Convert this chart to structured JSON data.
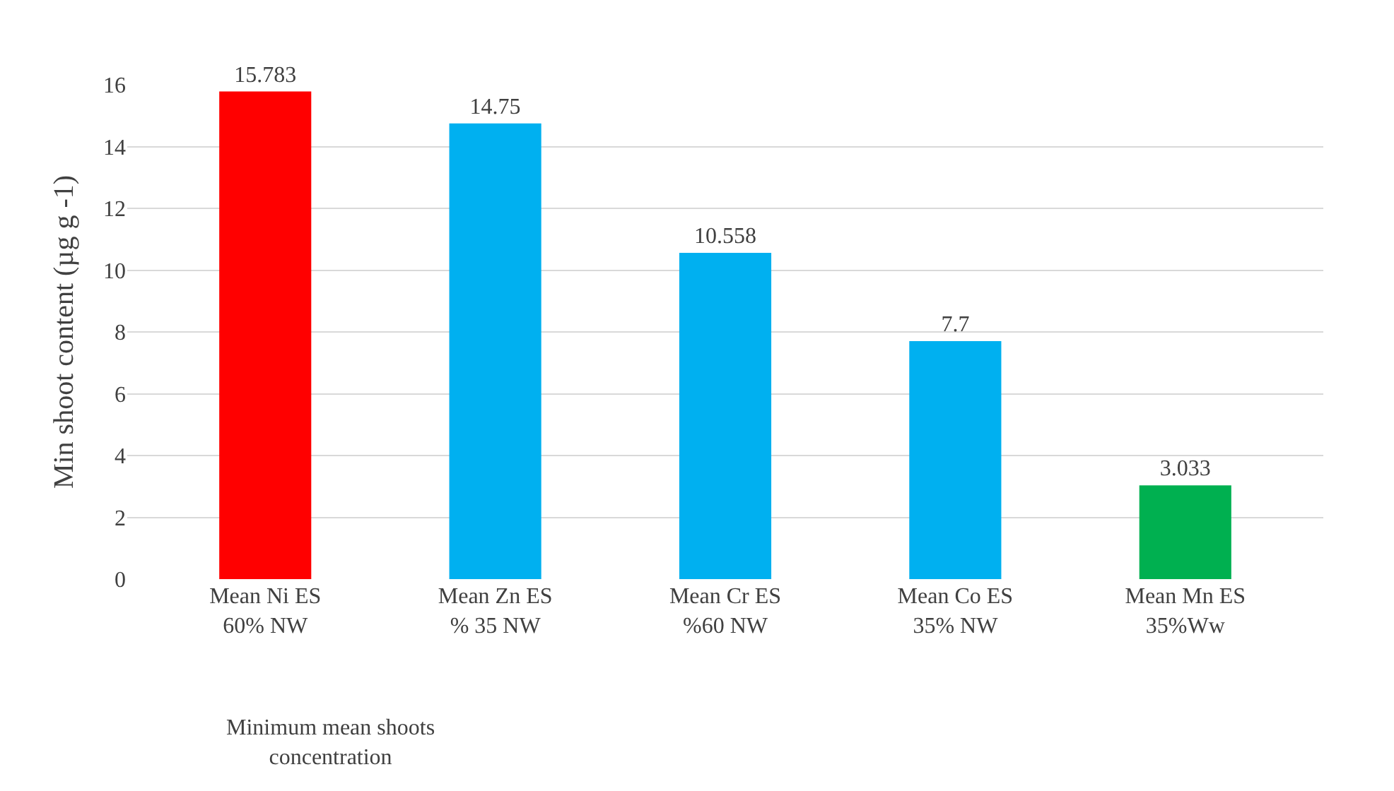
{
  "chart_data": {
    "type": "bar",
    "categories": [
      "Mean Ni ES\n60% NW",
      "Mean Zn ES\n% 35 NW",
      "Mean Cr ES\n%60 NW",
      "Mean Co ES\n35% NW",
      "Mean Mn ES\n35%Ww"
    ],
    "values": [
      15.783,
      14.75,
      10.558,
      7.7,
      3.033
    ],
    "colors": [
      "#ff0000",
      "#00b0f0",
      "#00b0f0",
      "#00b0f0",
      "#00b050"
    ],
    "xlabel": "Minimum mean shoots\nconcentration",
    "ylabel": "Min shoot content (µg g -1)",
    "ylim": [
      0,
      16
    ],
    "yticks": [
      0,
      2,
      4,
      6,
      8,
      10,
      12,
      14,
      16
    ],
    "grid": "y",
    "data_labels": true
  }
}
